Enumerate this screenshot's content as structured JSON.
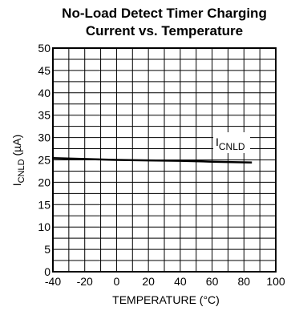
{
  "chart_data": {
    "type": "line",
    "title_lines": [
      "No-Load Detect Timer Charging",
      "Current vs. Temperature"
    ],
    "xlabel": "TEMPERATURE (°C)",
    "ylabel": {
      "main": "I",
      "sub": "CNLD",
      "unit": " (µA)"
    },
    "xlim": [
      -40,
      100
    ],
    "ylim": [
      0,
      50
    ],
    "x_ticks": [
      -40,
      -20,
      0,
      20,
      40,
      60,
      80,
      100
    ],
    "y_ticks": [
      0,
      5,
      10,
      15,
      20,
      25,
      30,
      35,
      40,
      45,
      50
    ],
    "x_grid_step": 10,
    "y_grid_step": 2.5,
    "grid": true,
    "series": [
      {
        "name": {
          "main": "I",
          "sub": "CNLD"
        },
        "x": [
          -40,
          -20,
          0,
          20,
          40,
          60,
          85
        ],
        "y": [
          25.4,
          25.2,
          25.0,
          24.9,
          24.8,
          24.6,
          24.4
        ]
      }
    ]
  }
}
